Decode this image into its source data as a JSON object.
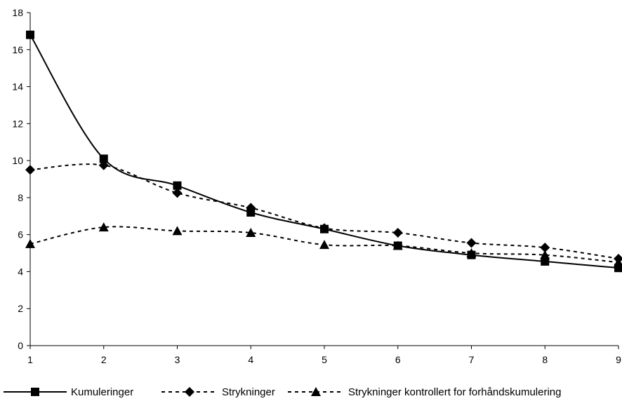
{
  "chart_data": {
    "type": "line",
    "title": "",
    "xlabel": "",
    "ylabel": "",
    "x": [
      1,
      2,
      3,
      4,
      5,
      6,
      7,
      8,
      9
    ],
    "xlim": [
      1,
      9
    ],
    "ylim": [
      0,
      18
    ],
    "x_ticks": [
      "1",
      "2",
      "3",
      "4",
      "5",
      "6",
      "7",
      "8",
      "9"
    ],
    "y_ticks": [
      "0",
      "2",
      "4",
      "6",
      "8",
      "10",
      "12",
      "14",
      "16",
      "18"
    ],
    "grid": false,
    "legend_position": "bottom",
    "series": [
      {
        "name": "Kumuleringer",
        "marker": "square",
        "line_style": "solid",
        "smooth": true,
        "color": "#000000",
        "values": [
          16.8,
          10.1,
          8.65,
          7.2,
          6.3,
          5.4,
          4.9,
          4.55,
          4.2
        ]
      },
      {
        "name": "Strykninger",
        "marker": "diamond",
        "line_style": "dashed",
        "smooth": true,
        "color": "#000000",
        "values": [
          9.5,
          9.75,
          8.25,
          7.45,
          6.35,
          6.1,
          5.55,
          5.3,
          4.7
        ]
      },
      {
        "name": "Strykninger kontrollert for forhåndskumulering",
        "marker": "triangle",
        "line_style": "dashed",
        "smooth": true,
        "color": "#000000",
        "values": [
          5.5,
          6.4,
          6.2,
          6.1,
          5.45,
          5.4,
          5.0,
          4.9,
          4.5
        ]
      }
    ]
  }
}
